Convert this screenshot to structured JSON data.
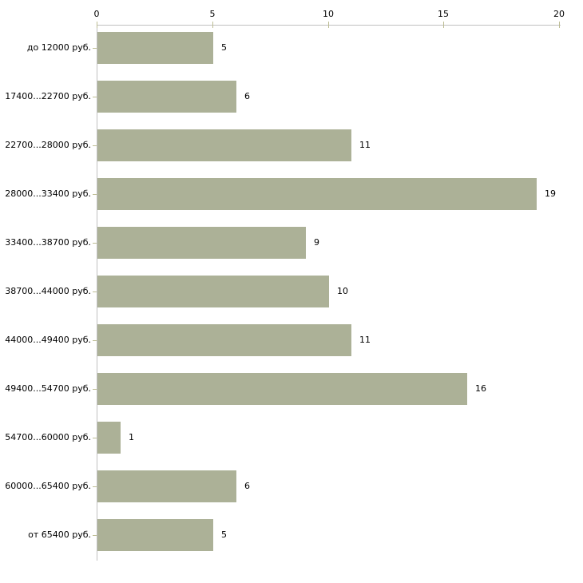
{
  "chart_data": {
    "type": "bar",
    "orientation": "horizontal",
    "title": "",
    "xlabel": "",
    "ylabel": "",
    "categories": [
      "до 12000 руб.",
      "17400...22700 руб.",
      "22700...28000 руб.",
      "28000...33400 руб.",
      "33400...38700 руб.",
      "38700...44000 руб.",
      "44000...49400 руб.",
      "49400...54700 руб.",
      "54700...60000 руб.",
      "60000...65400 руб.",
      "от 65400 руб."
    ],
    "values": [
      5,
      6,
      11,
      19,
      9,
      10,
      11,
      16,
      1,
      6,
      5
    ],
    "x_ticks": [
      "0",
      "5",
      "10",
      "15",
      "20"
    ],
    "xlim": [
      0,
      20
    ],
    "grid": false,
    "legend": false,
    "axis_position": "top",
    "bar_color": "#acb197",
    "axis_line_color": "#c0c0c0",
    "tick_color": "#bdbd94",
    "text_color": "#000000",
    "background_color": "#ffffff"
  }
}
